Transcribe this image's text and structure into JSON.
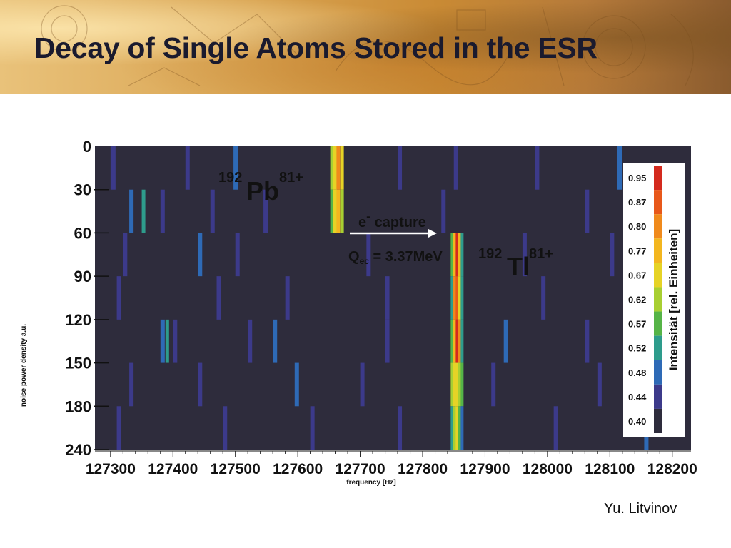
{
  "slide": {
    "title": "Decay of Single Atoms Stored in the ESR",
    "author": "Yu. Litvinov"
  },
  "chart_data": {
    "type": "heatmap",
    "xlabel": "frequency [Hz]",
    "ylabel": "noise  power density a.u.",
    "x_ticks": [
      127300,
      127400,
      127500,
      127600,
      127700,
      127800,
      127900,
      128000,
      128100,
      128200
    ],
    "y_tick_labels": [
      "0",
      "30",
      "60",
      "90",
      "120",
      "150",
      "180",
      "240"
    ],
    "colorbar": {
      "title": "Intensität [rel. Einheiten]",
      "levels": [
        {
          "value": "0.95",
          "color": "#d42a1e"
        },
        {
          "value": "0.87",
          "color": "#e8581a"
        },
        {
          "value": "0.80",
          "color": "#f08a1c"
        },
        {
          "value": "0.77",
          "color": "#f3b61f"
        },
        {
          "value": "0.67",
          "color": "#e6d326"
        },
        {
          "value": "0.62",
          "color": "#a8cf32"
        },
        {
          "value": "0.57",
          "color": "#56b447"
        },
        {
          "value": "0.52",
          "color": "#2e9c8c"
        },
        {
          "value": "0.48",
          "color": "#2e6ab6"
        },
        {
          "value": "0.44",
          "color": "#3c3a8a"
        },
        {
          "value": "0.40",
          "color": "#2e2c3c"
        }
      ]
    },
    "background_color": "#2e2c3c",
    "annotations": {
      "pb": {
        "mass": "192",
        "symbol": "Pb",
        "charge": "81+"
      },
      "tl": {
        "mass": "192",
        "symbol": "Tl",
        "charge": "81+"
      },
      "arrow_label": {
        "e": "e",
        "e_sup": "-",
        "capture": " capture"
      },
      "q_value": {
        "q": "Q",
        "sub": "ec",
        "rest": " = 3.37MeV"
      }
    },
    "time_bins": [
      {
        "label": "0-30",
        "lines": [
          {
            "f": 127300,
            "w": 7,
            "level": "0.44"
          },
          {
            "f": 127420,
            "w": 6,
            "level": "0.44"
          },
          {
            "f": 127497,
            "w": 6,
            "level": "0.48"
          },
          {
            "f": 127652,
            "w": 5,
            "level": "0.62"
          },
          {
            "f": 127657,
            "w": 5,
            "level": "0.67"
          },
          {
            "f": 127662,
            "w": 5,
            "level": "0.80"
          },
          {
            "f": 127668,
            "w": 5,
            "level": "0.67"
          },
          {
            "f": 127760,
            "w": 6,
            "level": "0.44"
          },
          {
            "f": 127850,
            "w": 6,
            "level": "0.44"
          },
          {
            "f": 127980,
            "w": 6,
            "level": "0.44"
          },
          {
            "f": 128112,
            "w": 7,
            "level": "0.48"
          }
        ]
      },
      {
        "label": "30-60",
        "lines": [
          {
            "f": 127330,
            "w": 6,
            "level": "0.48"
          },
          {
            "f": 127350,
            "w": 5,
            "level": "0.52"
          },
          {
            "f": 127380,
            "w": 6,
            "level": "0.44"
          },
          {
            "f": 127460,
            "w": 6,
            "level": "0.44"
          },
          {
            "f": 127545,
            "w": 6,
            "level": "0.44"
          },
          {
            "f": 127652,
            "w": 5,
            "level": "0.57"
          },
          {
            "f": 127657,
            "w": 5,
            "level": "0.67"
          },
          {
            "f": 127662,
            "w": 5,
            "level": "0.77"
          },
          {
            "f": 127668,
            "w": 5,
            "level": "0.62"
          },
          {
            "f": 127830,
            "w": 6,
            "level": "0.44"
          },
          {
            "f": 128060,
            "w": 6,
            "level": "0.44"
          },
          {
            "f": 128145,
            "w": 6,
            "level": "0.48"
          }
        ]
      },
      {
        "label": "60-90",
        "lines": [
          {
            "f": 127320,
            "w": 6,
            "level": "0.44"
          },
          {
            "f": 127440,
            "w": 6,
            "level": "0.48"
          },
          {
            "f": 127500,
            "w": 6,
            "level": "0.44"
          },
          {
            "f": 127710,
            "w": 6,
            "level": "0.44"
          },
          {
            "f": 127845,
            "w": 4,
            "level": "0.57"
          },
          {
            "f": 127849,
            "w": 4,
            "level": "0.77"
          },
          {
            "f": 127853,
            "w": 4,
            "level": "0.95"
          },
          {
            "f": 127857,
            "w": 4,
            "level": "0.77"
          },
          {
            "f": 127861,
            "w": 4,
            "level": "0.52"
          },
          {
            "f": 127960,
            "w": 6,
            "level": "0.44"
          },
          {
            "f": 128100,
            "w": 6,
            "level": "0.44"
          }
        ]
      },
      {
        "label": "90-120",
        "lines": [
          {
            "f": 127310,
            "w": 6,
            "level": "0.44"
          },
          {
            "f": 127470,
            "w": 6,
            "level": "0.44"
          },
          {
            "f": 127580,
            "w": 6,
            "level": "0.44"
          },
          {
            "f": 127740,
            "w": 6,
            "level": "0.44"
          },
          {
            "f": 127845,
            "w": 4,
            "level": "0.52"
          },
          {
            "f": 127849,
            "w": 4,
            "level": "0.80"
          },
          {
            "f": 127853,
            "w": 4,
            "level": "0.87"
          },
          {
            "f": 127857,
            "w": 4,
            "level": "0.67"
          },
          {
            "f": 127861,
            "w": 4,
            "level": "0.52"
          },
          {
            "f": 127990,
            "w": 6,
            "level": "0.44"
          },
          {
            "f": 128170,
            "w": 6,
            "level": "0.44"
          }
        ]
      },
      {
        "label": "120-150",
        "lines": [
          {
            "f": 127380,
            "w": 6,
            "level": "0.48"
          },
          {
            "f": 127388,
            "w": 5,
            "level": "0.52"
          },
          {
            "f": 127400,
            "w": 6,
            "level": "0.44"
          },
          {
            "f": 127520,
            "w": 6,
            "level": "0.44"
          },
          {
            "f": 127560,
            "w": 6,
            "level": "0.48"
          },
          {
            "f": 127740,
            "w": 6,
            "level": "0.44"
          },
          {
            "f": 127845,
            "w": 4,
            "level": "0.57"
          },
          {
            "f": 127849,
            "w": 4,
            "level": "0.77"
          },
          {
            "f": 127853,
            "w": 4,
            "level": "0.95"
          },
          {
            "f": 127857,
            "w": 4,
            "level": "0.80"
          },
          {
            "f": 127861,
            "w": 4,
            "level": "0.52"
          },
          {
            "f": 127930,
            "w": 6,
            "level": "0.48"
          },
          {
            "f": 128060,
            "w": 6,
            "level": "0.44"
          }
        ]
      },
      {
        "label": "150-180",
        "lines": [
          {
            "f": 127330,
            "w": 6,
            "level": "0.44"
          },
          {
            "f": 127440,
            "w": 6,
            "level": "0.44"
          },
          {
            "f": 127595,
            "w": 6,
            "level": "0.48"
          },
          {
            "f": 127700,
            "w": 6,
            "level": "0.44"
          },
          {
            "f": 127845,
            "w": 4,
            "level": "0.62"
          },
          {
            "f": 127849,
            "w": 4,
            "level": "0.67"
          },
          {
            "f": 127853,
            "w": 4,
            "level": "0.67"
          },
          {
            "f": 127857,
            "w": 4,
            "level": "0.62"
          },
          {
            "f": 127861,
            "w": 4,
            "level": "0.57"
          },
          {
            "f": 127910,
            "w": 6,
            "level": "0.44"
          },
          {
            "f": 128080,
            "w": 6,
            "level": "0.44"
          }
        ]
      },
      {
        "label": "180-240",
        "lines": [
          {
            "f": 127310,
            "w": 6,
            "level": "0.44"
          },
          {
            "f": 127480,
            "w": 6,
            "level": "0.44"
          },
          {
            "f": 127620,
            "w": 6,
            "level": "0.44"
          },
          {
            "f": 127760,
            "w": 6,
            "level": "0.44"
          },
          {
            "f": 127845,
            "w": 4,
            "level": "0.52"
          },
          {
            "f": 127849,
            "w": 4,
            "level": "0.62"
          },
          {
            "f": 127853,
            "w": 4,
            "level": "0.67"
          },
          {
            "f": 127857,
            "w": 4,
            "level": "0.57"
          },
          {
            "f": 127861,
            "w": 4,
            "level": "0.48"
          },
          {
            "f": 128010,
            "w": 6,
            "level": "0.44"
          },
          {
            "f": 128155,
            "w": 6,
            "level": "0.48"
          }
        ]
      }
    ]
  }
}
